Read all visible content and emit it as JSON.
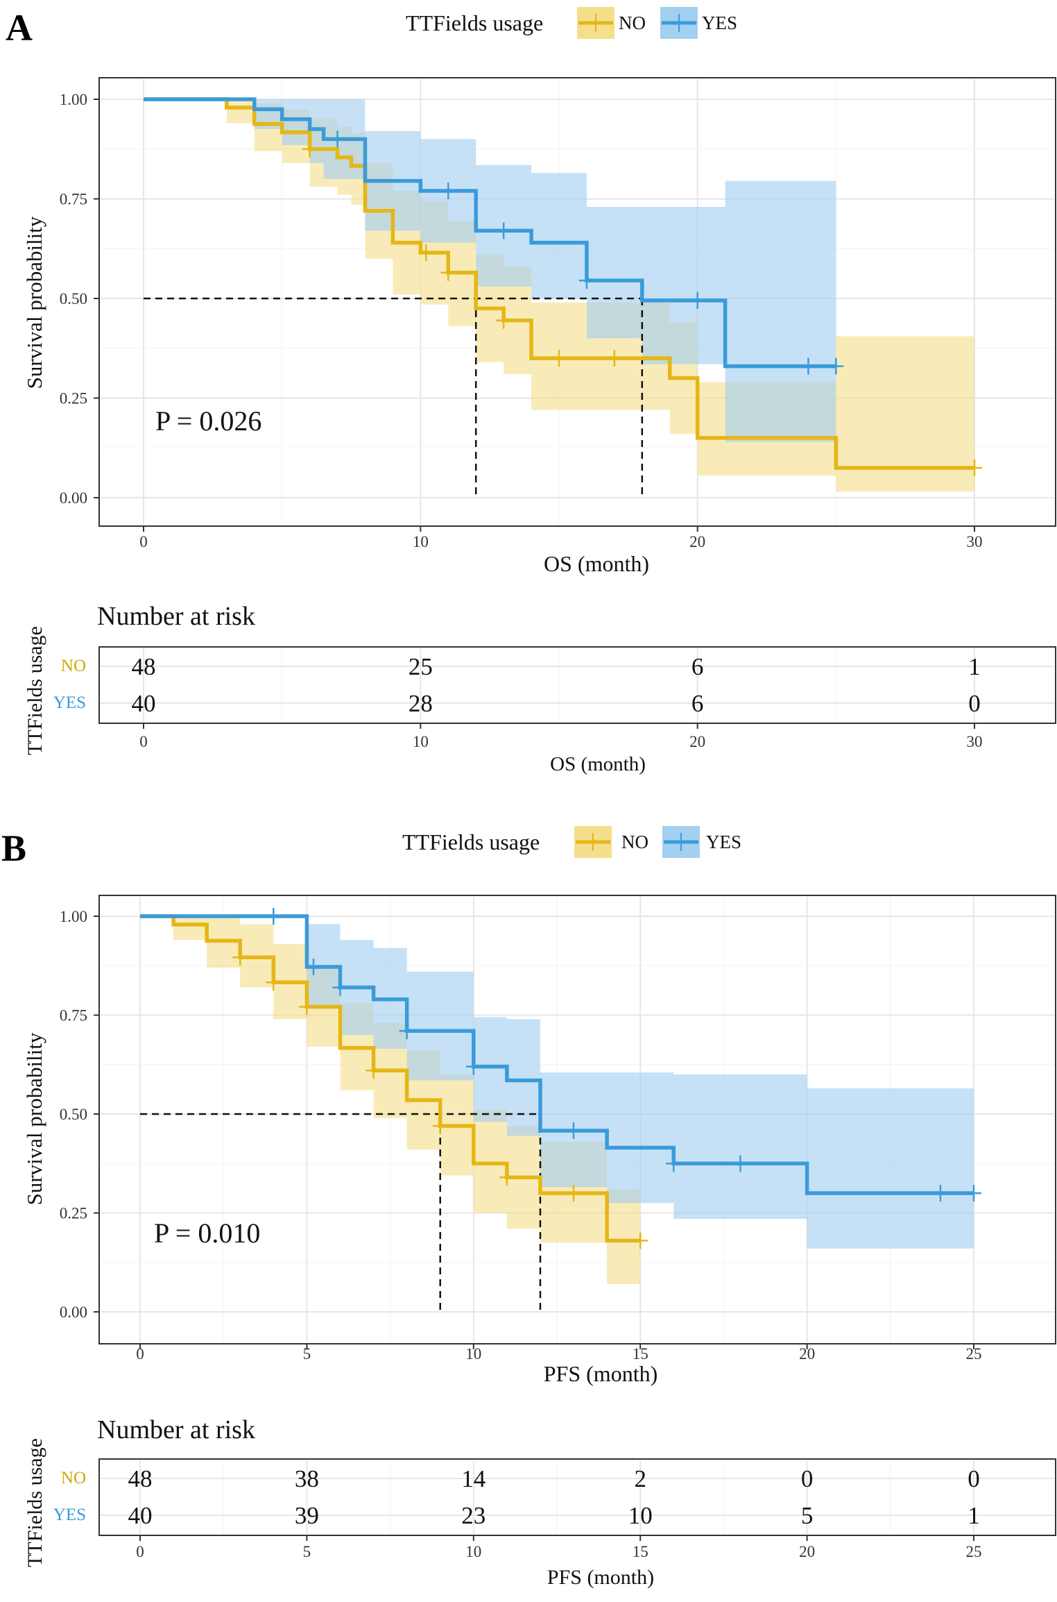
{
  "figure": {
    "panels": [
      {
        "panel_label": "A",
        "legend_title": "TTFields usage",
        "p_value_text": "P = 0.026",
        "y_axis_label": "Survival probability",
        "x_axis_label": "OS  (month)",
        "risk_title": "Number at risk",
        "risk_y_label": "TTFields usage",
        "risk_x_label": "OS (month)"
      },
      {
        "panel_label": "B",
        "legend_title": "TTFields usage",
        "p_value_text": "P = 0.010",
        "y_axis_label": "Survival probability",
        "x_axis_label": "PFS (month)",
        "risk_title": "Number at risk",
        "risk_y_label": "TTFields usage",
        "risk_x_label": "PFS  (month)"
      }
    ]
  },
  "chart_data": [
    {
      "type": "line",
      "subtype": "kaplan-meier step",
      "panel": "A",
      "xlabel": "OS  (month)",
      "ylabel": "Survival probability",
      "xlim": [
        0,
        32
      ],
      "ylim": [
        0,
        1
      ],
      "x_ticks": [
        0,
        10,
        20,
        30
      ],
      "y_ticks": [
        "0.00",
        "0.25",
        "0.50",
        "0.75",
        "1.00"
      ],
      "grid": true,
      "legend_position": "top",
      "legend_title": "TTFields usage",
      "annotation": "P = 0.026",
      "median_survival": [
        12,
        18
      ],
      "series": [
        {
          "name": "NO",
          "color": "#E5B616",
          "band_color": "#F5DE8C",
          "steps": [
            [
              0,
              1.0
            ],
            [
              3,
              0.979
            ],
            [
              4,
              0.938
            ],
            [
              5,
              0.917
            ],
            [
              6,
              0.875
            ],
            [
              7,
              0.854
            ],
            [
              7.5,
              0.833
            ],
            [
              8,
              0.72
            ],
            [
              9,
              0.64
            ],
            [
              10,
              0.615
            ],
            [
              11,
              0.565
            ],
            [
              12,
              0.475
            ],
            [
              13,
              0.445
            ],
            [
              14,
              0.35
            ],
            [
              19,
              0.3
            ],
            [
              20,
              0.15
            ],
            [
              25,
              0.075
            ],
            [
              30,
              0.075
            ]
          ],
          "upper": [
            [
              0,
              1.0
            ],
            [
              3,
              1.0
            ],
            [
              4,
              0.99
            ],
            [
              5,
              0.975
            ],
            [
              6,
              0.95
            ],
            [
              7,
              0.93
            ],
            [
              7.5,
              0.915
            ],
            [
              8,
              0.84
            ],
            [
              9,
              0.77
            ],
            [
              10,
              0.745
            ],
            [
              11,
              0.695
            ],
            [
              12,
              0.61
            ],
            [
              13,
              0.58
            ],
            [
              14,
              0.49
            ],
            [
              19,
              0.44
            ],
            [
              20,
              0.29
            ],
            [
              25,
              0.405
            ],
            [
              30,
              0.405
            ]
          ],
          "lower": [
            [
              0,
              1.0
            ],
            [
              3,
              0.94
            ],
            [
              4,
              0.87
            ],
            [
              5,
              0.84
            ],
            [
              6,
              0.78
            ],
            [
              7,
              0.76
            ],
            [
              7.5,
              0.735
            ],
            [
              8,
              0.6
            ],
            [
              9,
              0.51
            ],
            [
              10,
              0.485
            ],
            [
              11,
              0.43
            ],
            [
              12,
              0.34
            ],
            [
              13,
              0.31
            ],
            [
              14,
              0.22
            ],
            [
              19,
              0.16
            ],
            [
              20,
              0.055
            ],
            [
              25,
              0.015
            ],
            [
              30,
              0.015
            ]
          ],
          "censor_x": [
            6,
            10.2,
            11,
            13,
            15,
            17,
            30
          ],
          "risk_numbers": [
            "48",
            "25",
            "6",
            "1"
          ]
        },
        {
          "name": "YES",
          "color": "#3A9BD9",
          "band_color": "#A3CFF0",
          "steps": [
            [
              0,
              1.0
            ],
            [
              4,
              0.975
            ],
            [
              5,
              0.95
            ],
            [
              6,
              0.925
            ],
            [
              6.5,
              0.9
            ],
            [
              8,
              0.795
            ],
            [
              10,
              0.77
            ],
            [
              12,
              0.67
            ],
            [
              14,
              0.64
            ],
            [
              16,
              0.545
            ],
            [
              18,
              0.495
            ],
            [
              21,
              0.33
            ],
            [
              25,
              0.33
            ]
          ],
          "upper": [
            [
              0,
              1.0
            ],
            [
              4,
              1.0
            ],
            [
              5,
              1.0
            ],
            [
              6,
              1.0
            ],
            [
              6.5,
              1.0
            ],
            [
              8,
              0.92
            ],
            [
              10,
              0.9
            ],
            [
              12,
              0.835
            ],
            [
              14,
              0.815
            ],
            [
              16,
              0.73
            ],
            [
              18,
              0.73
            ],
            [
              21,
              0.795
            ],
            [
              25,
              0.795
            ]
          ],
          "lower": [
            [
              0,
              1.0
            ],
            [
              4,
              0.925
            ],
            [
              5,
              0.885
            ],
            [
              6,
              0.84
            ],
            [
              6.5,
              0.8
            ],
            [
              8,
              0.67
            ],
            [
              10,
              0.64
            ],
            [
              12,
              0.53
            ],
            [
              14,
              0.5
            ],
            [
              16,
              0.4
            ],
            [
              18,
              0.335
            ],
            [
              21,
              0.14
            ],
            [
              25,
              0.14
            ]
          ],
          "censor_x": [
            7,
            11,
            13,
            16,
            20,
            24,
            25
          ],
          "risk_numbers": [
            "40",
            "28",
            "6",
            "0"
          ]
        }
      ],
      "risk_table": {
        "title": "Number at risk",
        "row_labels": [
          "NO",
          "YES"
        ],
        "x": [
          0,
          10,
          20,
          30
        ],
        "xlabel": "OS (month)"
      }
    },
    {
      "type": "line",
      "subtype": "kaplan-meier step",
      "panel": "B",
      "xlabel": "PFS (month)",
      "ylabel": "Survival probability",
      "xlim": [
        0,
        27
      ],
      "ylim": [
        0,
        1
      ],
      "x_ticks": [
        0,
        5,
        10,
        15,
        20,
        25
      ],
      "y_ticks": [
        "0.00",
        "0.25",
        "0.50",
        "0.75",
        "1.00"
      ],
      "grid": true,
      "legend_position": "top",
      "legend_title": "TTFields usage",
      "annotation": "P = 0.010",
      "median_survival": [
        9,
        12
      ],
      "series": [
        {
          "name": "NO",
          "color": "#E5B616",
          "band_color": "#F5DE8C",
          "steps": [
            [
              0,
              1.0
            ],
            [
              1,
              0.979
            ],
            [
              2,
              0.938
            ],
            [
              3,
              0.896
            ],
            [
              4,
              0.833
            ],
            [
              5,
              0.771
            ],
            [
              6,
              0.667
            ],
            [
              7,
              0.61
            ],
            [
              8,
              0.535
            ],
            [
              9,
              0.47
            ],
            [
              10,
              0.375
            ],
            [
              11,
              0.34
            ],
            [
              12,
              0.3
            ],
            [
              14,
              0.18
            ],
            [
              15,
              0.18
            ]
          ],
          "upper": [
            [
              0,
              1.0
            ],
            [
              1,
              1.0
            ],
            [
              2,
              1.0
            ],
            [
              3,
              0.98
            ],
            [
              4,
              0.93
            ],
            [
              5,
              0.87
            ],
            [
              6,
              0.78
            ],
            [
              7,
              0.73
            ],
            [
              8,
              0.66
            ],
            [
              9,
              0.6
            ],
            [
              10,
              0.51
            ],
            [
              11,
              0.47
            ],
            [
              12,
              0.43
            ],
            [
              14,
              0.31
            ],
            [
              15,
              0.31
            ]
          ],
          "lower": [
            [
              0,
              1.0
            ],
            [
              1,
              0.94
            ],
            [
              2,
              0.87
            ],
            [
              3,
              0.82
            ],
            [
              4,
              0.74
            ],
            [
              5,
              0.67
            ],
            [
              6,
              0.56
            ],
            [
              7,
              0.49
            ],
            [
              8,
              0.41
            ],
            [
              9,
              0.345
            ],
            [
              10,
              0.25
            ],
            [
              11,
              0.21
            ],
            [
              12,
              0.175
            ],
            [
              14,
              0.07
            ],
            [
              15,
              0.07
            ]
          ],
          "censor_x": [
            3,
            4,
            5,
            7,
            9,
            11,
            13,
            15
          ],
          "risk_numbers": [
            "48",
            "38",
            "14",
            "2",
            "0",
            "0"
          ]
        },
        {
          "name": "YES",
          "color": "#3A9BD9",
          "band_color": "#A3CFF0",
          "steps": [
            [
              0,
              1.0
            ],
            [
              5,
              0.872
            ],
            [
              6,
              0.82
            ],
            [
              7,
              0.79
            ],
            [
              8,
              0.71
            ],
            [
              10,
              0.62
            ],
            [
              11,
              0.585
            ],
            [
              12,
              0.458
            ],
            [
              14,
              0.415
            ],
            [
              16,
              0.375
            ],
            [
              20,
              0.3
            ],
            [
              25,
              0.3
            ]
          ],
          "upper": [
            [
              0,
              1.0
            ],
            [
              5,
              0.98
            ],
            [
              6,
              0.94
            ],
            [
              7,
              0.92
            ],
            [
              8,
              0.86
            ],
            [
              10,
              0.745
            ],
            [
              11,
              0.74
            ],
            [
              12,
              0.605
            ],
            [
              14,
              0.605
            ],
            [
              16,
              0.6
            ],
            [
              20,
              0.565
            ],
            [
              25,
              0.565
            ]
          ],
          "lower": [
            [
              0,
              1.0
            ],
            [
              5,
              0.77
            ],
            [
              6,
              0.7
            ],
            [
              7,
              0.665
            ],
            [
              8,
              0.585
            ],
            [
              10,
              0.48
            ],
            [
              11,
              0.445
            ],
            [
              12,
              0.315
            ],
            [
              14,
              0.275
            ],
            [
              16,
              0.235
            ],
            [
              20,
              0.16
            ],
            [
              25,
              0.16
            ]
          ],
          "censor_x": [
            4,
            5.2,
            6,
            8,
            10,
            13,
            16,
            18,
            24,
            25
          ],
          "risk_numbers": [
            "40",
            "39",
            "23",
            "10",
            "5",
            "1"
          ]
        }
      ],
      "risk_table": {
        "title": "Number at risk",
        "row_labels": [
          "NO",
          "YES"
        ],
        "x": [
          0,
          5,
          10,
          15,
          20,
          25
        ],
        "xlabel": "PFS  (month)"
      }
    }
  ]
}
